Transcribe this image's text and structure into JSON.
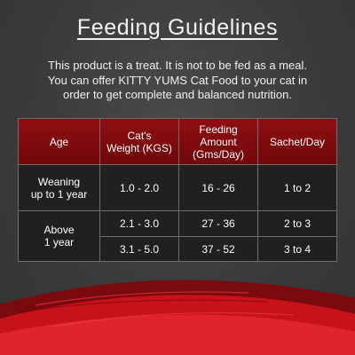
{
  "title": "Feeding Guidelines",
  "intro": {
    "line1": "This product is a treat. It is not to be fed as a meal.",
    "line2": "You can offer KITTY YUMS Cat Food to your cat in",
    "line3": "order to get complete and balanced nutrition."
  },
  "table": {
    "headers": {
      "age": "Age",
      "weight_line1": "Cat's",
      "weight_line2": "Weight (KGS)",
      "feeding_line1": "Feeding",
      "feeding_line2": "Amount",
      "feeding_line3": "(Gms/Day)",
      "sachet": "Sachet/Day"
    },
    "groups": [
      {
        "age_line1": "Weaning",
        "age_line2": "up to 1 year",
        "rows": [
          {
            "weight": "1.0 - 2.0",
            "amount": "16 - 26",
            "sachet": "1 to 2"
          }
        ]
      },
      {
        "age_line1": "Above",
        "age_line2": "1 year",
        "rows": [
          {
            "weight": "2.1 - 3.0",
            "amount": "27 - 36",
            "sachet": "2 to 3"
          },
          {
            "weight": "3.1 - 5.0",
            "amount": "37 - 52",
            "sachet": "3 to 4"
          }
        ]
      }
    ]
  },
  "colors": {
    "background": "#3c3c3c",
    "header_red": "#8e0f12",
    "swoosh_red": "#d0121a",
    "cell_dark": "#202020",
    "text": "#ffffff"
  }
}
